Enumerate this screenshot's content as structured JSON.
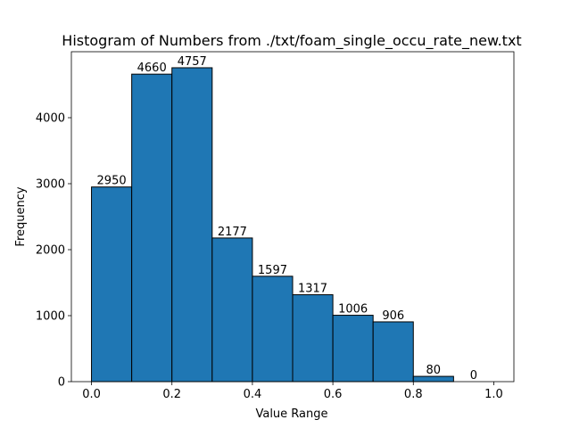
{
  "chart_data": {
    "type": "bar",
    "title": "Histogram of Numbers from ./txt/foam_single_occu_rate_new.txt",
    "xlabel": "Value Range",
    "ylabel": "Frequency",
    "bin_edges": [
      0.0,
      0.1,
      0.2,
      0.3,
      0.4,
      0.5,
      0.6,
      0.7,
      0.8,
      0.9,
      1.0
    ],
    "values": [
      2950,
      4660,
      4757,
      2177,
      1597,
      1317,
      1006,
      906,
      80,
      0
    ],
    "xlim": [
      -0.05,
      1.05
    ],
    "ylim": [
      0,
      5000
    ],
    "xticks": [
      0.0,
      0.2,
      0.4,
      0.6,
      0.8,
      1.0
    ],
    "xtick_labels": [
      "0.0",
      "0.2",
      "0.4",
      "0.6",
      "0.8",
      "1.0"
    ],
    "yticks": [
      0,
      1000,
      2000,
      3000,
      4000
    ],
    "ytick_labels": [
      "0",
      "1000",
      "2000",
      "3000",
      "4000"
    ],
    "bar_color": "#1f77b4",
    "edge_color": "#000000",
    "grid": false,
    "legend": "none"
  }
}
